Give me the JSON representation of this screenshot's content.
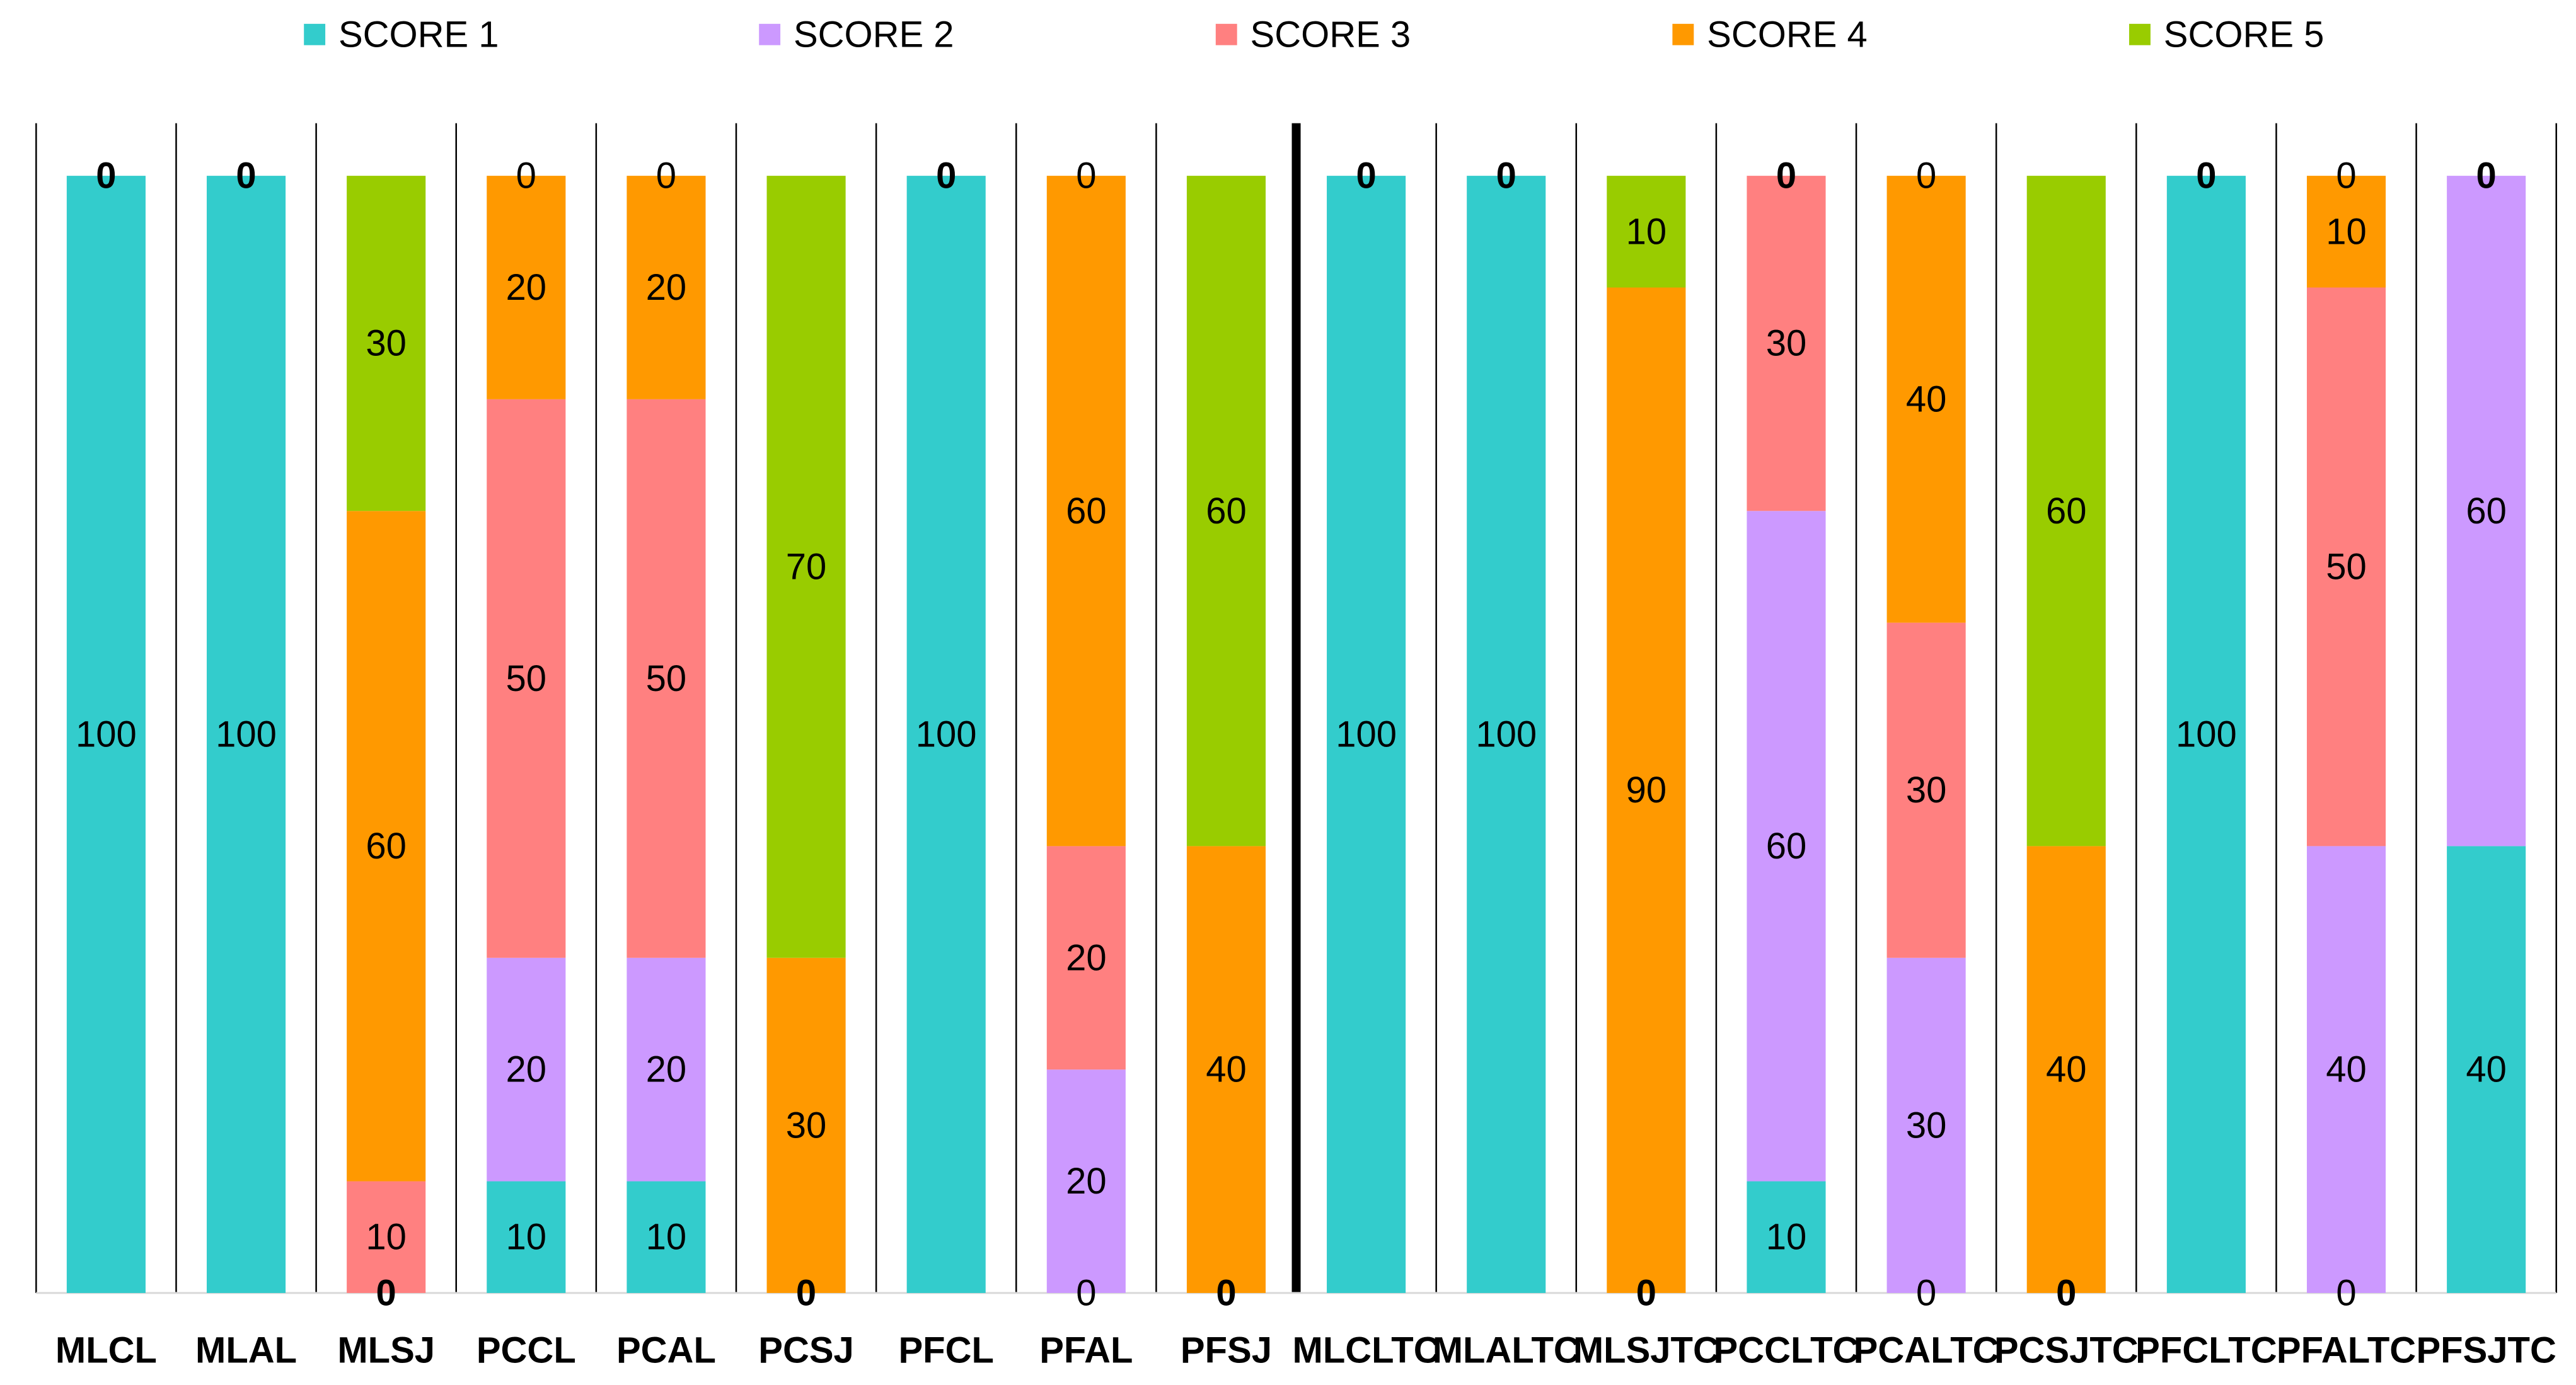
{
  "chart_data": {
    "type": "bar",
    "stacked": true,
    "title": "",
    "xlabel": "",
    "ylabel": "",
    "ylim": [
      0,
      100
    ],
    "legend_position": "top",
    "categories": [
      "MLCL",
      "MLAL",
      "MLSJ",
      "PCCL",
      "PCAL",
      "PCSJ",
      "PFCL",
      "PFAL",
      "PFSJ",
      "MLCLTC",
      "MLALTC",
      "MLSJTC",
      "PCCLTC",
      "PCALTC",
      "PCSJTC",
      "PFCLTC",
      "PFALTC",
      "PFSJTC"
    ],
    "series": [
      {
        "name": "SCORE 1",
        "color": "#33CCCC",
        "values": [
          100,
          100,
          0,
          10,
          10,
          0,
          100,
          0,
          0,
          100,
          100,
          0,
          10,
          0,
          0,
          100,
          0,
          40
        ]
      },
      {
        "name": "SCORE 2",
        "color": "#CC99FF",
        "values": [
          0,
          0,
          0,
          20,
          20,
          0,
          0,
          20,
          0,
          0,
          0,
          0,
          60,
          30,
          0,
          0,
          40,
          60
        ]
      },
      {
        "name": "SCORE 3",
        "color": "#FF8080",
        "values": [
          0,
          0,
          10,
          50,
          50,
          0,
          0,
          20,
          0,
          0,
          0,
          0,
          30,
          30,
          0,
          0,
          50,
          0
        ]
      },
      {
        "name": "SCORE 4",
        "color": "#FF9900",
        "values": [
          0,
          0,
          60,
          20,
          20,
          30,
          0,
          60,
          40,
          0,
          0,
          90,
          0,
          40,
          40,
          0,
          10,
          0
        ]
      },
      {
        "name": "SCORE 5",
        "color": "#99CC00",
        "values": [
          0,
          0,
          30,
          0,
          0,
          70,
          0,
          0,
          60,
          0,
          0,
          10,
          0,
          0,
          60,
          0,
          0,
          0
        ]
      }
    ],
    "labels": [
      [
        {
          "score": 1,
          "text": "100"
        },
        {
          "score": 5,
          "text": "0",
          "bold": true
        }
      ],
      [
        {
          "score": 1,
          "text": "100"
        },
        {
          "score": 5,
          "text": "0",
          "bold": true
        }
      ],
      [
        {
          "score": 1,
          "text": "0",
          "bold": true
        },
        {
          "score": 3,
          "text": "10"
        },
        {
          "score": 4,
          "text": "60"
        },
        {
          "score": 5,
          "text": "30"
        }
      ],
      [
        {
          "score": 1,
          "text": "10"
        },
        {
          "score": 2,
          "text": "20"
        },
        {
          "score": 3,
          "text": "50"
        },
        {
          "score": 4,
          "text": "20"
        },
        {
          "score": 5,
          "text": "0"
        }
      ],
      [
        {
          "score": 1,
          "text": "10"
        },
        {
          "score": 2,
          "text": "20"
        },
        {
          "score": 3,
          "text": "50"
        },
        {
          "score": 4,
          "text": "20"
        },
        {
          "score": 5,
          "text": "0"
        }
      ],
      [
        {
          "score": 1,
          "text": "0",
          "bold": true
        },
        {
          "score": 4,
          "text": "30"
        },
        {
          "score": 5,
          "text": "70"
        }
      ],
      [
        {
          "score": 1,
          "text": "100"
        },
        {
          "score": 5,
          "text": "0",
          "bold": true
        }
      ],
      [
        {
          "score": 1,
          "text": "0"
        },
        {
          "score": 2,
          "text": "20"
        },
        {
          "score": 3,
          "text": "20"
        },
        {
          "score": 4,
          "text": "60"
        },
        {
          "score": 5,
          "text": "0"
        }
      ],
      [
        {
          "score": 1,
          "text": "0",
          "bold": true
        },
        {
          "score": 4,
          "text": "40"
        },
        {
          "score": 5,
          "text": "60"
        }
      ],
      [
        {
          "score": 1,
          "text": "100"
        },
        {
          "score": 5,
          "text": "0",
          "bold": true
        }
      ],
      [
        {
          "score": 1,
          "text": "100"
        },
        {
          "score": 5,
          "text": "0",
          "bold": true
        }
      ],
      [
        {
          "score": 1,
          "text": "0",
          "bold": true
        },
        {
          "score": 4,
          "text": "90"
        },
        {
          "score": 5,
          "text": "10"
        }
      ],
      [
        {
          "score": 1,
          "text": "10"
        },
        {
          "score": 2,
          "text": "60"
        },
        {
          "score": 3,
          "text": "30"
        },
        {
          "score": 5,
          "text": "0",
          "bold": true
        }
      ],
      [
        {
          "score": 1,
          "text": "0"
        },
        {
          "score": 2,
          "text": "30"
        },
        {
          "score": 3,
          "text": "30"
        },
        {
          "score": 4,
          "text": "40"
        },
        {
          "score": 5,
          "text": "0"
        }
      ],
      [
        {
          "score": 1,
          "text": "0",
          "bold": true
        },
        {
          "score": 4,
          "text": "40"
        },
        {
          "score": 5,
          "text": "60"
        }
      ],
      [
        {
          "score": 1,
          "text": "100"
        },
        {
          "score": 5,
          "text": "0",
          "bold": true
        }
      ],
      [
        {
          "score": 1,
          "text": "0"
        },
        {
          "score": 2,
          "text": "40"
        },
        {
          "score": 3,
          "text": "50"
        },
        {
          "score": 4,
          "text": "10"
        },
        {
          "score": 5,
          "text": "0"
        }
      ],
      [
        {
          "score": 1,
          "text": "40"
        },
        {
          "score": 2,
          "text": "60"
        },
        {
          "score": 5,
          "text": "0",
          "bold": true
        }
      ]
    ]
  }
}
